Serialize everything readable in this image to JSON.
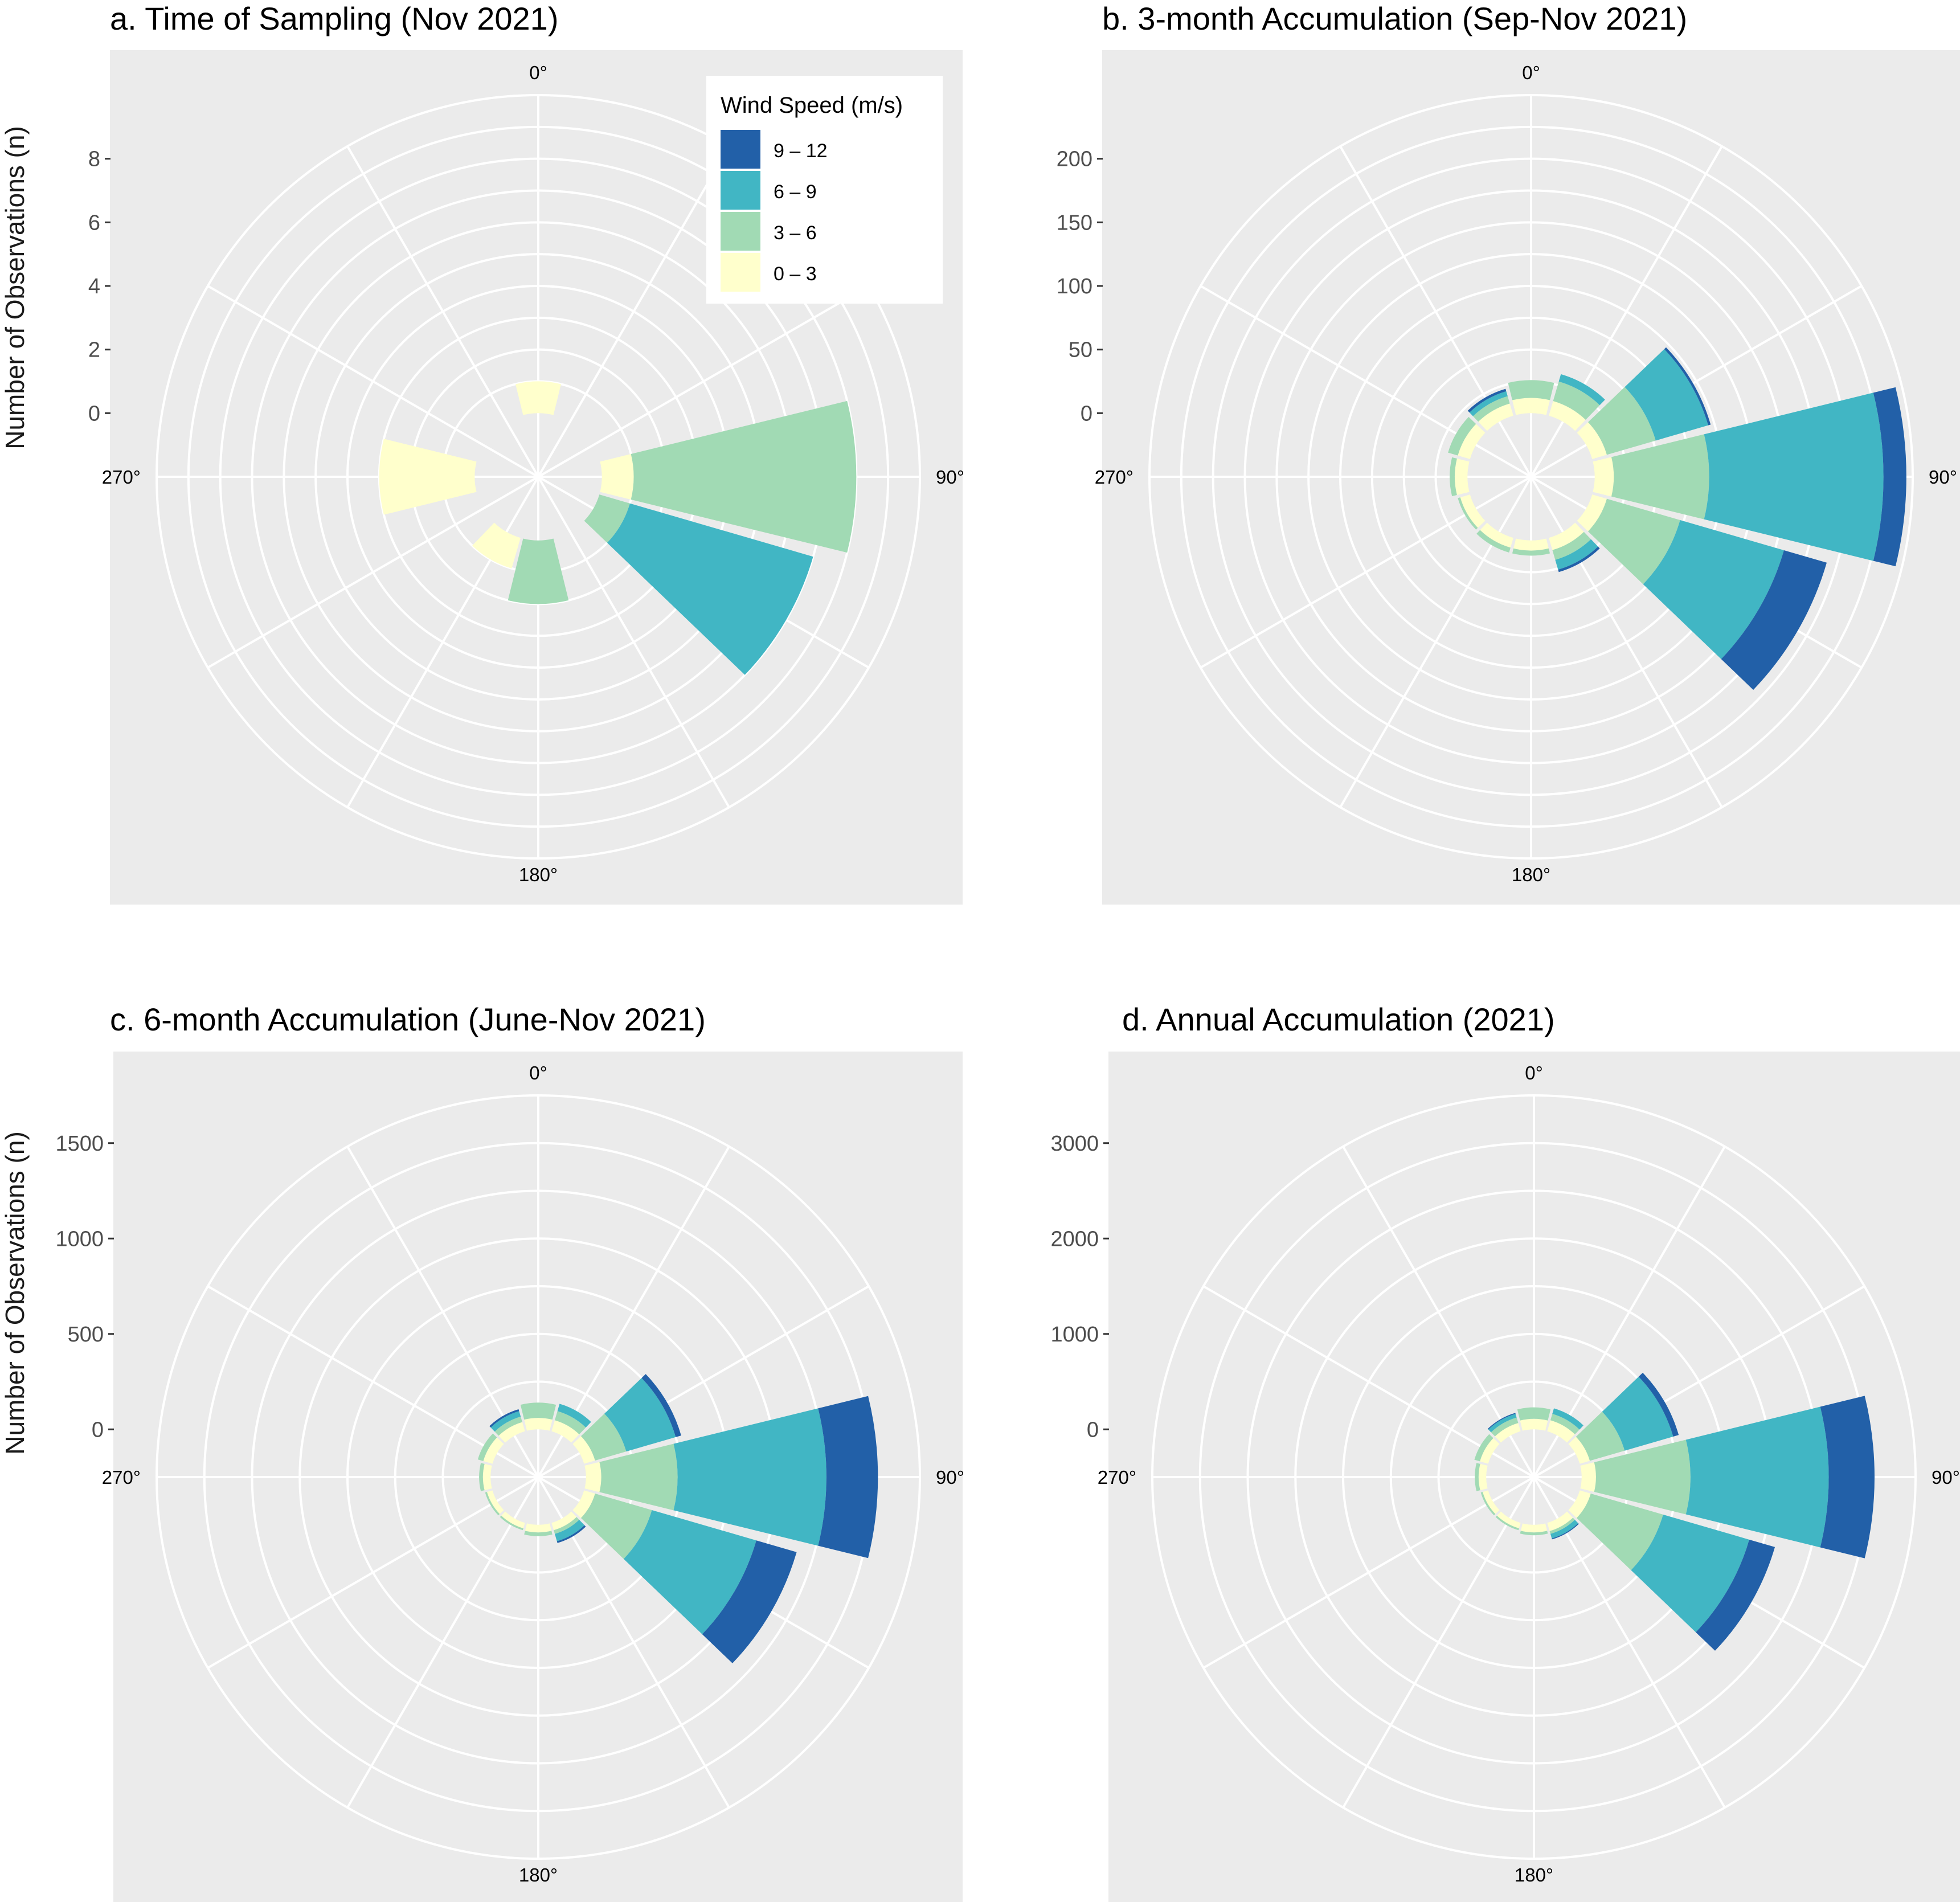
{
  "figure": {
    "y_axis_label": "Number of Observations (n)",
    "legend": {
      "title": "Wind Speed (m/s)",
      "placement": "top-right of panel a",
      "entries": [
        {
          "label": "9 – 12",
          "color": "#2260A8"
        },
        {
          "label": "6 – 9",
          "color": "#41B6C4"
        },
        {
          "label": "3 – 6",
          "color": "#A1DAB4"
        },
        {
          "label": "0 – 3",
          "color": "#FFFFCC"
        }
      ]
    },
    "panel_background": "#EBEBEB",
    "grid_color": "#FFFFFF"
  },
  "chart_data": [
    {
      "type": "bar",
      "projection": "polar (wind rose, stacked)",
      "title": "a. Time of Sampling (Nov 2021)",
      "ylabel": "Number of Observations (n)",
      "yticks": [
        0,
        2,
        4,
        6,
        8
      ],
      "ylim": [
        -2,
        10
      ],
      "angle_labels": [
        "0°",
        "90°",
        "180°",
        "270°"
      ],
      "categories": [
        "0°",
        "30°",
        "60°",
        "90°",
        "120°",
        "150°",
        "180°",
        "210°",
        "240°",
        "270°",
        "300°",
        "330°"
      ],
      "series": [
        {
          "name": "0 – 3",
          "values": [
            1,
            0,
            0,
            1,
            0,
            0,
            0,
            1,
            0,
            3,
            0,
            0
          ]
        },
        {
          "name": "3 – 6",
          "values": [
            0,
            0,
            0,
            7,
            1,
            0,
            2,
            0,
            0,
            0,
            0,
            0
          ]
        },
        {
          "name": "6 – 9",
          "values": [
            0,
            0,
            0,
            0,
            6,
            0,
            0,
            0,
            0,
            0,
            0,
            0
          ]
        },
        {
          "name": "9 – 12",
          "values": [
            0,
            0,
            0,
            0,
            0,
            0,
            0,
            0,
            0,
            0,
            0,
            0
          ]
        }
      ]
    },
    {
      "type": "bar",
      "projection": "polar (wind rose, stacked)",
      "title": "b. 3-month Accumulation (Sep-Nov 2021)",
      "ylabel": "",
      "yticks": [
        0,
        50,
        100,
        150,
        200
      ],
      "ylim": [
        -50,
        250
      ],
      "angle_labels": [
        "0°",
        "90°",
        "180°",
        "270°"
      ],
      "categories": [
        "0°",
        "30°",
        "60°",
        "90°",
        "120°",
        "150°",
        "180°",
        "210°",
        "240°",
        "270°",
        "300°",
        "330°"
      ],
      "series": [
        {
          "name": "0 – 3",
          "values": [
            12,
            12,
            12,
            15,
            12,
            10,
            8,
            8,
            8,
            10,
            10,
            10
          ]
        },
        {
          "name": "3 – 6",
          "values": [
            14,
            16,
            40,
            75,
            60,
            8,
            4,
            4,
            2,
            4,
            8,
            6
          ]
        },
        {
          "name": "6 – 9",
          "values": [
            0,
            6,
            43,
            137,
            85,
            8,
            0,
            0,
            0,
            0,
            0,
            4
          ]
        },
        {
          "name": "9 – 12",
          "values": [
            0,
            0,
            2,
            18,
            35,
            2,
            0,
            0,
            0,
            0,
            0,
            2
          ]
        }
      ]
    },
    {
      "type": "bar",
      "projection": "polar (wind rose, stacked)",
      "title": "c. 6-month Accumulation (June-Nov 2021)",
      "ylabel": "Number of Observations (n)",
      "yticks": [
        0,
        500,
        1000,
        1500
      ],
      "ylim": [
        -250,
        1750
      ],
      "angle_labels": [
        "0°",
        "90°",
        "180°",
        "270°"
      ],
      "categories": [
        "0°",
        "30°",
        "60°",
        "90°",
        "120°",
        "150°",
        "180°",
        "210°",
        "240°",
        "270°",
        "300°",
        "330°"
      ],
      "series": [
        {
          "name": "0 – 3",
          "values": [
            60,
            60,
            60,
            80,
            60,
            40,
            40,
            30,
            30,
            40,
            50,
            50
          ]
        },
        {
          "name": "3 – 6",
          "values": [
            80,
            50,
            170,
            400,
            310,
            20,
            20,
            10,
            10,
            20,
            30,
            30
          ]
        },
        {
          "name": "6 – 9",
          "values": [
            0,
            40,
            270,
            780,
            570,
            40,
            0,
            0,
            0,
            0,
            0,
            30
          ]
        },
        {
          "name": "9 – 12",
          "values": [
            0,
            0,
            30,
            270,
            220,
            10,
            0,
            0,
            0,
            0,
            0,
            10
          ]
        }
      ]
    },
    {
      "type": "bar",
      "projection": "polar (wind rose, stacked)",
      "title": "d. Annual Accumulation (2021)",
      "ylabel": "",
      "yticks": [
        0,
        1000,
        2000,
        3000
      ],
      "ylim": [
        -500,
        3500
      ],
      "angle_labels": [
        "0°",
        "90°",
        "180°",
        "270°"
      ],
      "categories": [
        "0°",
        "30°",
        "60°",
        "90°",
        "120°",
        "150°",
        "180°",
        "210°",
        "240°",
        "270°",
        "300°",
        "330°"
      ],
      "series": [
        {
          "name": "0 – 3",
          "values": [
            110,
            120,
            110,
            150,
            120,
            90,
            80,
            60,
            60,
            80,
            90,
            90
          ]
        },
        {
          "name": "3 – 6",
          "values": [
            120,
            70,
            380,
            990,
            790,
            30,
            30,
            20,
            20,
            40,
            60,
            60
          ]
        },
        {
          "name": "6 – 9",
          "values": [
            0,
            60,
            530,
            1450,
            940,
            50,
            0,
            0,
            0,
            0,
            0,
            40
          ]
        },
        {
          "name": "9 – 12",
          "values": [
            0,
            0,
            60,
            480,
            280,
            10,
            0,
            0,
            0,
            0,
            0,
            10
          ]
        }
      ]
    }
  ]
}
